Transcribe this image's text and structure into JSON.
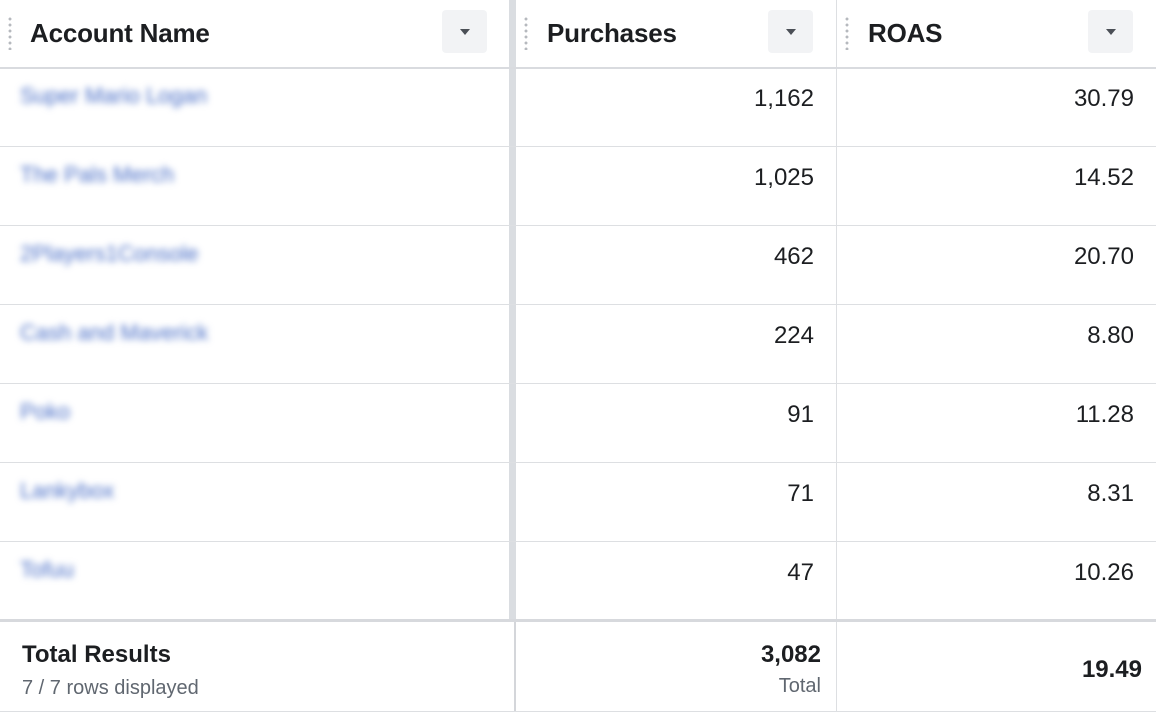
{
  "columns": [
    {
      "label": "Account Name"
    },
    {
      "label": "Purchases"
    },
    {
      "label": "ROAS"
    }
  ],
  "rows": [
    {
      "account": "Super Mario Logan",
      "purchases": "1,162",
      "roas": "30.79"
    },
    {
      "account": "The Pals Merch",
      "purchases": "1,025",
      "roas": "14.52"
    },
    {
      "account": "2Players1Console",
      "purchases": "462",
      "roas": "20.70"
    },
    {
      "account": "Cash and Maverick",
      "purchases": "224",
      "roas": "8.80"
    },
    {
      "account": "Poko",
      "purchases": "91",
      "roas": "11.28"
    },
    {
      "account": "Lankybox",
      "purchases": "71",
      "roas": "8.31"
    },
    {
      "account": "Tofuu",
      "purchases": "47",
      "roas": "10.26"
    }
  ],
  "footer": {
    "title": "Total Results",
    "rows_displayed": "7 / 7 rows displayed",
    "purchases_total": "3,082",
    "purchases_total_label": "Total",
    "roas_total": "19.49"
  },
  "colors": {
    "link": "#4a6fc7",
    "border": "#dddfe2",
    "muted_text": "#606770"
  }
}
